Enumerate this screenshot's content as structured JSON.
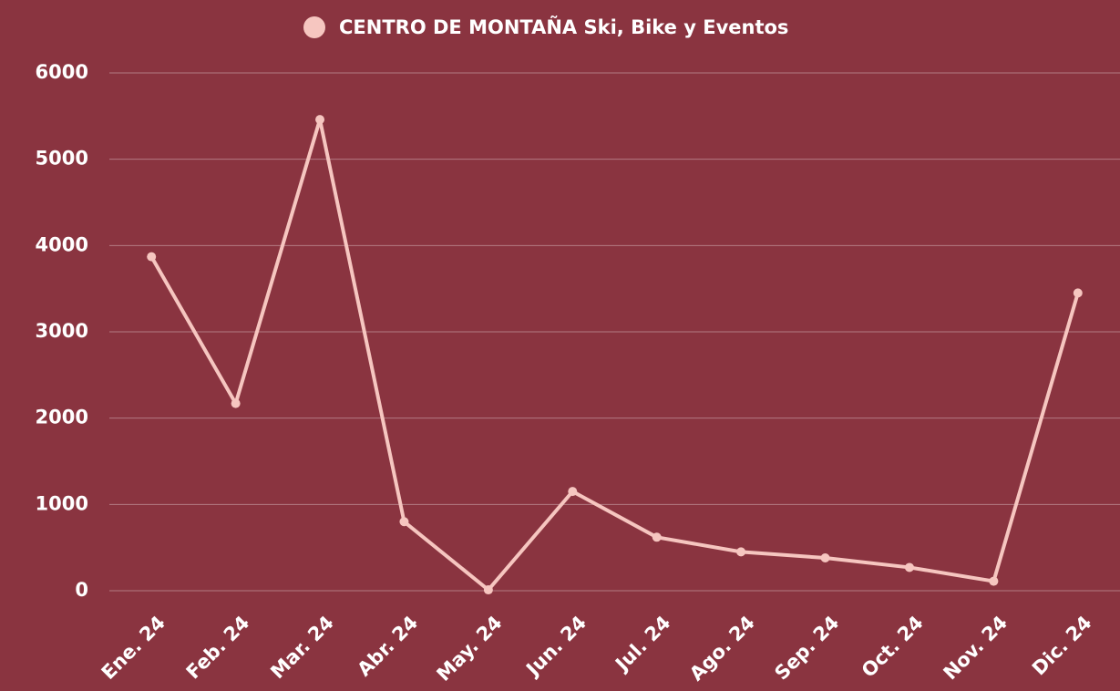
{
  "chart_data": {
    "type": "line",
    "categories": [
      "Ene. 24",
      "Feb. 24",
      "Mar. 24",
      "Abr. 24",
      "May. 24",
      "Jun. 24",
      "Jul. 24",
      "Ago. 24",
      "Sep. 24",
      "Oct. 24",
      "Nov. 24",
      "Dic. 24"
    ],
    "series": [
      {
        "name": "CENTRO DE MONTAÑA Ski, Bike y Eventos",
        "color": "#f6c6c0",
        "values": [
          3870,
          2170,
          5460,
          800,
          10,
          1150,
          620,
          450,
          380,
          270,
          110,
          3450
        ]
      }
    ],
    "ylim": [
      0,
      6000
    ],
    "yticks": [
      0,
      1000,
      2000,
      3000,
      4000,
      5000,
      6000
    ],
    "grid": true,
    "legend": "top"
  }
}
